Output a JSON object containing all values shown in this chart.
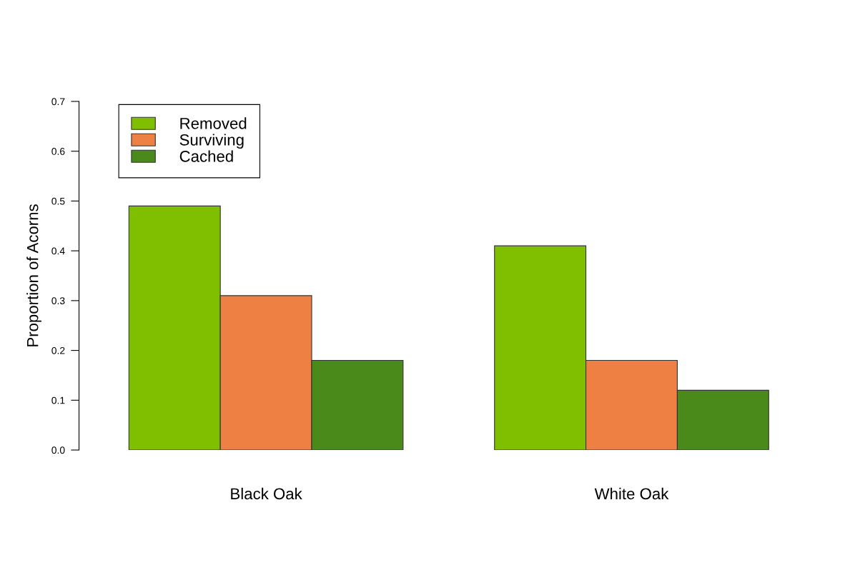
{
  "chart_data": {
    "type": "bar",
    "ylabel": "Proportion of Acorns",
    "categories": [
      "Black Oak",
      "White Oak"
    ],
    "series": [
      {
        "name": "Removed",
        "color": "#7fbf00",
        "values": [
          0.49,
          0.41
        ]
      },
      {
        "name": "Surviving",
        "color": "#ef8044",
        "values": [
          0.31,
          0.18
        ]
      },
      {
        "name": "Cached",
        "color": "#4a8a1a",
        "values": [
          0.18,
          0.12
        ]
      }
    ],
    "ylim": [
      0,
      0.7
    ],
    "yticks": [
      {
        "value": 0,
        "label": "0.0"
      },
      0.1,
      0.2,
      0.3,
      0.4,
      0.5,
      0.6,
      0.7
    ],
    "legend": "top left",
    "grid": false
  }
}
